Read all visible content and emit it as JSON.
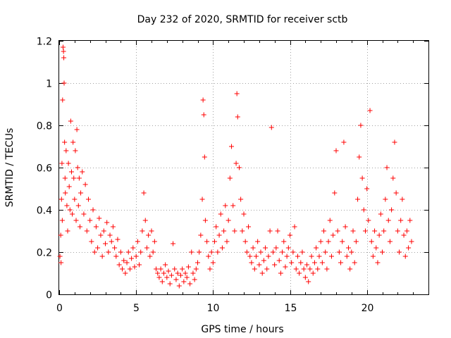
{
  "chart_data": {
    "type": "scatter",
    "title": "Day 232 of 2020, SRMTID for receiver sctb",
    "xlabel": "GPS time / hours",
    "ylabel": "SRMTID / TECUs",
    "xlim": [
      0,
      24
    ],
    "ylim": [
      0,
      1.2
    ],
    "xticks": [
      0,
      5,
      10,
      15,
      20
    ],
    "yticks": [
      0,
      0.2,
      0.4,
      0.6,
      0.8,
      1,
      1.2
    ],
    "xtick_labels": [
      "0",
      "5",
      "10",
      "15",
      "20"
    ],
    "ytick_labels": [
      "0",
      "0.2",
      "0.4",
      "0.6",
      "0.8",
      "1",
      "1.2"
    ],
    "grid": true,
    "marker": "+",
    "colors": {
      "series": "#ff0000",
      "grid": "#a0a0a0",
      "axes": "#000000"
    },
    "series": [
      {
        "name": "SRMTID",
        "points": [
          [
            0.05,
            0.18
          ],
          [
            0.1,
            0.28
          ],
          [
            0.12,
            0.15
          ],
          [
            0.15,
            0.45
          ],
          [
            0.18,
            0.62
          ],
          [
            0.2,
            0.35
          ],
          [
            0.22,
            0.92
          ],
          [
            0.25,
            1.17
          ],
          [
            0.28,
            1.15
          ],
          [
            0.3,
            1.12
          ],
          [
            0.32,
            1.0
          ],
          [
            0.35,
            0.72
          ],
          [
            0.38,
            0.55
          ],
          [
            0.4,
            0.48
          ],
          [
            0.45,
            0.68
          ],
          [
            0.5,
            0.42
          ],
          [
            0.55,
            0.3
          ],
          [
            0.6,
            0.62
          ],
          [
            0.65,
            0.51
          ],
          [
            0.7,
            0.4
          ],
          [
            0.75,
            0.82
          ],
          [
            0.8,
            0.58
          ],
          [
            0.85,
            0.38
          ],
          [
            0.9,
            0.72
          ],
          [
            0.95,
            0.55
          ],
          [
            1.0,
            0.45
          ],
          [
            1.05,
            0.68
          ],
          [
            1.1,
            0.35
          ],
          [
            1.15,
            0.78
          ],
          [
            1.2,
            0.6
          ],
          [
            1.25,
            0.42
          ],
          [
            1.3,
            0.55
          ],
          [
            1.35,
            0.32
          ],
          [
            1.4,
            0.48
          ],
          [
            1.5,
            0.58
          ],
          [
            1.6,
            0.38
          ],
          [
            1.7,
            0.52
          ],
          [
            1.8,
            0.3
          ],
          [
            1.9,
            0.45
          ],
          [
            2.0,
            0.35
          ],
          [
            2.1,
            0.25
          ],
          [
            2.2,
            0.4
          ],
          [
            2.3,
            0.2
          ],
          [
            2.4,
            0.32
          ],
          [
            2.5,
            0.22
          ],
          [
            2.6,
            0.36
          ],
          [
            2.7,
            0.28
          ],
          [
            2.8,
            0.18
          ],
          [
            2.9,
            0.3
          ],
          [
            3.0,
            0.24
          ],
          [
            3.1,
            0.34
          ],
          [
            3.2,
            0.2
          ],
          [
            3.3,
            0.28
          ],
          [
            3.4,
            0.25
          ],
          [
            3.5,
            0.32
          ],
          [
            3.6,
            0.22
          ],
          [
            3.7,
            0.18
          ],
          [
            3.8,
            0.26
          ],
          [
            3.9,
            0.14
          ],
          [
            4.0,
            0.2
          ],
          [
            4.1,
            0.12
          ],
          [
            4.2,
            0.16
          ],
          [
            4.3,
            0.1
          ],
          [
            4.4,
            0.15
          ],
          [
            4.5,
            0.2
          ],
          [
            4.6,
            0.12
          ],
          [
            4.7,
            0.17
          ],
          [
            4.8,
            0.22
          ],
          [
            4.9,
            0.13
          ],
          [
            5.0,
            0.18
          ],
          [
            5.1,
            0.25
          ],
          [
            5.2,
            0.14
          ],
          [
            5.3,
            0.2
          ],
          [
            5.4,
            0.3
          ],
          [
            5.5,
            0.48
          ],
          [
            5.6,
            0.35
          ],
          [
            5.7,
            0.22
          ],
          [
            5.8,
            0.28
          ],
          [
            5.9,
            0.18
          ],
          [
            6.0,
            0.3
          ],
          [
            6.1,
            0.2
          ],
          [
            6.2,
            0.25
          ],
          [
            6.3,
            0.12
          ],
          [
            6.4,
            0.1
          ],
          [
            6.5,
            0.08
          ],
          [
            6.6,
            0.12
          ],
          [
            6.7,
            0.06
          ],
          [
            6.8,
            0.1
          ],
          [
            6.9,
            0.14
          ],
          [
            7.0,
            0.08
          ],
          [
            7.1,
            0.11
          ],
          [
            7.2,
            0.05
          ],
          [
            7.3,
            0.09
          ],
          [
            7.4,
            0.24
          ],
          [
            7.5,
            0.12
          ],
          [
            7.6,
            0.07
          ],
          [
            7.7,
            0.1
          ],
          [
            7.8,
            0.04
          ],
          [
            7.9,
            0.09
          ],
          [
            8.0,
            0.12
          ],
          [
            8.1,
            0.06
          ],
          [
            8.2,
            0.1
          ],
          [
            8.3,
            0.08
          ],
          [
            8.4,
            0.13
          ],
          [
            8.5,
            0.05
          ],
          [
            8.6,
            0.2
          ],
          [
            8.7,
            0.1
          ],
          [
            8.8,
            0.07
          ],
          [
            8.9,
            0.12
          ],
          [
            9.0,
            0.15
          ],
          [
            9.1,
            0.2
          ],
          [
            9.2,
            0.28
          ],
          [
            9.3,
            0.45
          ],
          [
            9.35,
            0.92
          ],
          [
            9.4,
            0.85
          ],
          [
            9.45,
            0.65
          ],
          [
            9.5,
            0.35
          ],
          [
            9.6,
            0.25
          ],
          [
            9.7,
            0.18
          ],
          [
            9.8,
            0.12
          ],
          [
            9.9,
            0.2
          ],
          [
            10.0,
            0.15
          ],
          [
            10.1,
            0.25
          ],
          [
            10.2,
            0.32
          ],
          [
            10.3,
            0.2
          ],
          [
            10.4,
            0.28
          ],
          [
            10.5,
            0.38
          ],
          [
            10.6,
            0.22
          ],
          [
            10.7,
            0.3
          ],
          [
            10.8,
            0.42
          ],
          [
            10.9,
            0.25
          ],
          [
            11.0,
            0.35
          ],
          [
            11.1,
            0.55
          ],
          [
            11.2,
            0.7
          ],
          [
            11.3,
            0.42
          ],
          [
            11.4,
            0.3
          ],
          [
            11.5,
            0.62
          ],
          [
            11.55,
            0.95
          ],
          [
            11.6,
            0.84
          ],
          [
            11.7,
            0.6
          ],
          [
            11.8,
            0.45
          ],
          [
            11.9,
            0.3
          ],
          [
            12.0,
            0.38
          ],
          [
            12.1,
            0.25
          ],
          [
            12.2,
            0.2
          ],
          [
            12.3,
            0.32
          ],
          [
            12.4,
            0.18
          ],
          [
            12.5,
            0.15
          ],
          [
            12.6,
            0.22
          ],
          [
            12.7,
            0.12
          ],
          [
            12.8,
            0.18
          ],
          [
            12.9,
            0.25
          ],
          [
            13.0,
            0.14
          ],
          [
            13.1,
            0.2
          ],
          [
            13.2,
            0.1
          ],
          [
            13.3,
            0.16
          ],
          [
            13.4,
            0.22
          ],
          [
            13.5,
            0.12
          ],
          [
            13.6,
            0.18
          ],
          [
            13.7,
            0.3
          ],
          [
            13.8,
            0.79
          ],
          [
            13.9,
            0.2
          ],
          [
            14.0,
            0.14
          ],
          [
            14.1,
            0.22
          ],
          [
            14.2,
            0.3
          ],
          [
            14.3,
            0.16
          ],
          [
            14.4,
            0.1
          ],
          [
            14.5,
            0.2
          ],
          [
            14.6,
            0.25
          ],
          [
            14.7,
            0.13
          ],
          [
            14.8,
            0.18
          ],
          [
            14.9,
            0.22
          ],
          [
            15.0,
            0.28
          ],
          [
            15.1,
            0.15
          ],
          [
            15.2,
            0.2
          ],
          [
            15.3,
            0.32
          ],
          [
            15.4,
            0.12
          ],
          [
            15.5,
            0.18
          ],
          [
            15.6,
            0.1
          ],
          [
            15.7,
            0.15
          ],
          [
            15.8,
            0.2
          ],
          [
            15.9,
            0.12
          ],
          [
            16.0,
            0.08
          ],
          [
            16.1,
            0.14
          ],
          [
            16.2,
            0.06
          ],
          [
            16.3,
            0.12
          ],
          [
            16.4,
            0.18
          ],
          [
            16.5,
            0.1
          ],
          [
            16.6,
            0.15
          ],
          [
            16.7,
            0.22
          ],
          [
            16.8,
            0.12
          ],
          [
            16.9,
            0.18
          ],
          [
            17.0,
            0.25
          ],
          [
            17.1,
            0.15
          ],
          [
            17.2,
            0.3
          ],
          [
            17.3,
            0.2
          ],
          [
            17.4,
            0.12
          ],
          [
            17.5,
            0.25
          ],
          [
            17.6,
            0.35
          ],
          [
            17.7,
            0.18
          ],
          [
            17.8,
            0.28
          ],
          [
            17.9,
            0.48
          ],
          [
            18.0,
            0.68
          ],
          [
            18.1,
            0.3
          ],
          [
            18.2,
            0.2
          ],
          [
            18.3,
            0.15
          ],
          [
            18.4,
            0.25
          ],
          [
            18.5,
            0.72
          ],
          [
            18.6,
            0.32
          ],
          [
            18.7,
            0.18
          ],
          [
            18.8,
            0.22
          ],
          [
            18.9,
            0.12
          ],
          [
            19.0,
            0.2
          ],
          [
            19.1,
            0.3
          ],
          [
            19.2,
            0.15
          ],
          [
            19.3,
            0.25
          ],
          [
            19.4,
            0.45
          ],
          [
            19.5,
            0.65
          ],
          [
            19.6,
            0.8
          ],
          [
            19.7,
            0.55
          ],
          [
            19.8,
            0.4
          ],
          [
            19.9,
            0.3
          ],
          [
            20.0,
            0.5
          ],
          [
            20.1,
            0.35
          ],
          [
            20.2,
            0.87
          ],
          [
            20.3,
            0.25
          ],
          [
            20.4,
            0.18
          ],
          [
            20.5,
            0.3
          ],
          [
            20.6,
            0.22
          ],
          [
            20.7,
            0.15
          ],
          [
            20.8,
            0.28
          ],
          [
            20.9,
            0.38
          ],
          [
            21.0,
            0.2
          ],
          [
            21.1,
            0.3
          ],
          [
            21.2,
            0.45
          ],
          [
            21.3,
            0.6
          ],
          [
            21.4,
            0.35
          ],
          [
            21.5,
            0.25
          ],
          [
            21.6,
            0.4
          ],
          [
            21.7,
            0.55
          ],
          [
            21.8,
            0.72
          ],
          [
            21.9,
            0.48
          ],
          [
            22.0,
            0.3
          ],
          [
            22.1,
            0.2
          ],
          [
            22.2,
            0.35
          ],
          [
            22.3,
            0.45
          ],
          [
            22.4,
            0.28
          ],
          [
            22.5,
            0.18
          ],
          [
            22.6,
            0.3
          ],
          [
            22.7,
            0.22
          ],
          [
            22.8,
            0.35
          ],
          [
            22.9,
            0.25
          ]
        ]
      }
    ]
  }
}
